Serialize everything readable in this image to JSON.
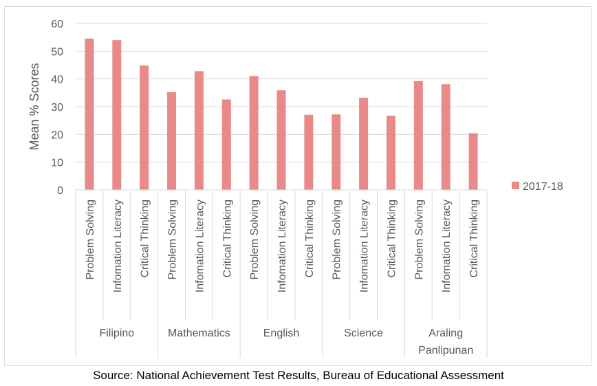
{
  "caption": "Source: National Achievement Test Results, Bureau of Educational Assessment",
  "chart_data": {
    "type": "bar",
    "ylabel": "Mean % Scores",
    "ylim": [
      0,
      60
    ],
    "yticks": [
      0,
      10,
      20,
      30,
      40,
      50,
      60
    ],
    "grid": true,
    "legend_position": "right",
    "bar_color": "#e88a87",
    "groups": [
      {
        "name": "Filipino",
        "categories": [
          "Problem Solving",
          "Infomation Literacy",
          "Critical Thinking"
        ]
      },
      {
        "name": "Mathematics",
        "categories": [
          "Problem Solving",
          "Infomation Literacy",
          "Critical Thinking"
        ]
      },
      {
        "name": "English",
        "categories": [
          "Problem Solving",
          "Infomation Literacy",
          "Critical Thinking"
        ]
      },
      {
        "name": "Science",
        "categories": [
          "Problem Solving",
          "Infomation Literacy",
          "Critical Thinking"
        ]
      },
      {
        "name": "Araling Panlipunan",
        "categories": [
          "Problem Solving",
          "Infomation Literacy",
          "Critical Thinking"
        ]
      }
    ],
    "series": [
      {
        "name": "2017-18",
        "values": [
          54.5,
          54.0,
          44.8,
          35.2,
          42.8,
          32.6,
          41.0,
          35.9,
          27.1,
          27.2,
          33.2,
          26.7,
          39.2,
          38.1,
          20.4
        ]
      }
    ]
  }
}
